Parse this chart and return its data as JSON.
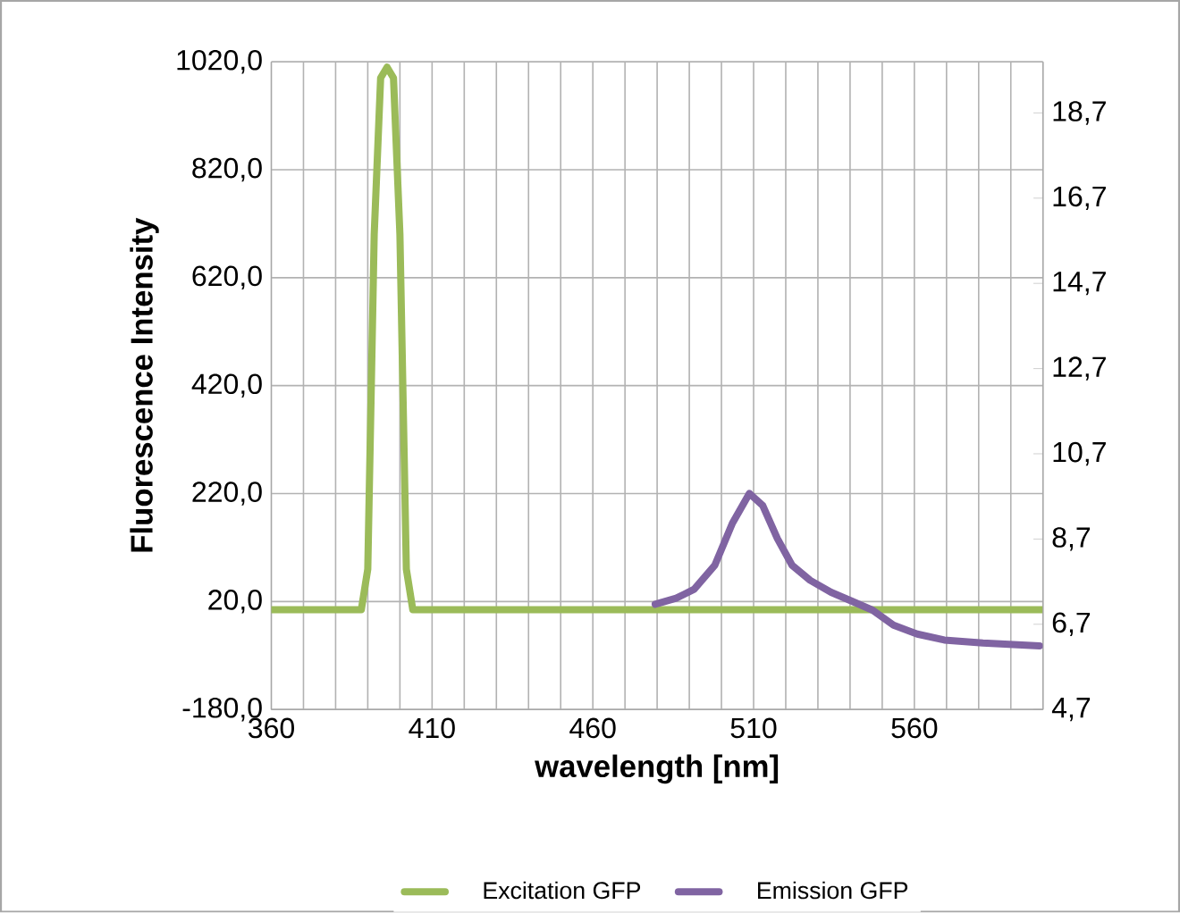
{
  "chart_data": {
    "type": "line",
    "xlabel": "wavelength [nm]",
    "ylabel": "Fluorescence Intensity",
    "xlim": [
      360,
      600
    ],
    "xticks": [
      360,
      {
        "value": 370,
        "label": null
      },
      {
        "value": 380,
        "label": null
      },
      {
        "value": 390,
        "label": null
      },
      {
        "value": 400,
        "label": null
      },
      410,
      {
        "value": 420,
        "label": null
      },
      {
        "value": 430,
        "label": null
      },
      {
        "value": 440,
        "label": null
      },
      {
        "value": 450,
        "label": null
      },
      460,
      {
        "value": 470,
        "label": null
      },
      {
        "value": 480,
        "label": null
      },
      {
        "value": 490,
        "label": null
      },
      {
        "value": 500,
        "label": null
      },
      510,
      {
        "value": 520,
        "label": null
      },
      {
        "value": 530,
        "label": null
      },
      {
        "value": 540,
        "label": null
      },
      {
        "value": 550,
        "label": null
      },
      560,
      {
        "value": 570,
        "label": null
      },
      {
        "value": 580,
        "label": null
      },
      {
        "value": 590,
        "label": null
      },
      {
        "value": 600,
        "label": null
      }
    ],
    "ylim": [
      -180,
      1020
    ],
    "yticks": [
      {
        "value": -180,
        "label": "-180,0"
      },
      {
        "value": 20,
        "label": "20,0"
      },
      {
        "value": 220,
        "label": "220,0"
      },
      {
        "value": 420,
        "label": "420,0"
      },
      {
        "value": 620,
        "label": "620,0"
      },
      {
        "value": 820,
        "label": "820,0"
      },
      {
        "value": 1020,
        "label": "1020,0"
      }
    ],
    "y2lim": [
      4.7,
      19.9
    ],
    "y2ticks": [
      {
        "value": 4.7,
        "label": "4,7"
      },
      {
        "value": 6.7,
        "label": "6,7"
      },
      {
        "value": 8.7,
        "label": "8,7"
      },
      {
        "value": 10.7,
        "label": "10,7"
      },
      {
        "value": 12.7,
        "label": "12,7"
      },
      {
        "value": 14.7,
        "label": "14,7"
      },
      {
        "value": 16.7,
        "label": "16,7"
      },
      {
        "value": 18.7,
        "label": "18,7"
      }
    ],
    "grid": true,
    "legend": "bottom",
    "marker": "none",
    "line_style": "solid",
    "series": [
      {
        "name": "Excitation GFP",
        "color": "#9bbb59",
        "x": [
          360,
          388,
          390,
          392,
          394,
          396,
          398,
          400,
          402,
          404,
          600
        ],
        "values": [
          5,
          5,
          80,
          700,
          990,
          1010,
          990,
          700,
          80,
          5,
          5
        ]
      },
      {
        "name": "Emission GFP",
        "color": "#8064a2",
        "axis": "y2",
        "x": [
          479.4,
          485.9,
          491.5,
          497.9,
          503.4,
          508.7,
          512.8,
          517.4,
          522,
          527.6,
          534.1,
          540.6,
          547,
          553.5,
          560.9,
          569.3,
          581.3,
          598.9
        ],
        "values": [
          7.17,
          7.31,
          7.52,
          8.08,
          9.07,
          9.77,
          9.49,
          8.71,
          8.08,
          7.73,
          7.45,
          7.24,
          7.03,
          6.68,
          6.47,
          6.33,
          6.26,
          6.19
        ]
      }
    ]
  }
}
